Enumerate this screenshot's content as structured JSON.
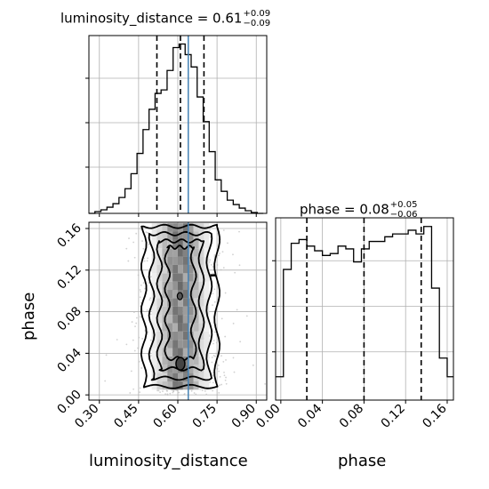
{
  "chart_data": {
    "type": "corner",
    "parameters": [
      "luminosity_distance",
      "phase"
    ],
    "truth": {
      "luminosity_distance": 0.64
    },
    "colors": {
      "truth_line": "#4682b4",
      "hist": "#000000",
      "grid": "#b0b0b0",
      "scatter": "#bdbdbd"
    },
    "panels": [
      {
        "id": "hist_luminosity_distance",
        "type": "histogram",
        "title": {
          "text": "luminosity_distance = 0.61",
          "upper": "+0.09",
          "lower": "−0.09"
        },
        "xlim": [
          0.26,
          0.94
        ],
        "quantiles": [
          0.52,
          0.61,
          0.7
        ],
        "bin_edges": [
          0.26,
          0.283,
          0.306,
          0.329,
          0.352,
          0.375,
          0.398,
          0.421,
          0.444,
          0.467,
          0.49,
          0.513,
          0.536,
          0.559,
          0.582,
          0.605,
          0.628,
          0.651,
          0.674,
          0.697,
          0.72,
          0.743,
          0.766,
          0.789,
          0.812,
          0.835,
          0.858,
          0.881,
          0.904,
          0.927
        ],
        "counts": [
          0,
          2,
          4,
          7,
          11,
          18,
          28,
          45,
          68,
          95,
          118,
          136,
          140,
          162,
          188,
          192,
          180,
          166,
          132,
          104,
          70,
          38,
          25,
          15,
          10,
          6,
          3,
          1,
          0
        ]
      },
      {
        "id": "hist_phase",
        "type": "histogram",
        "title": {
          "text": "phase = 0.08",
          "upper": "+0.05",
          "lower": "−0.06"
        },
        "xlim": [
          -0.005,
          0.166
        ],
        "quantiles": [
          0.025,
          0.08,
          0.135
        ],
        "bin_edges": [
          -0.005,
          0.0025,
          0.01,
          0.0175,
          0.025,
          0.0325,
          0.04,
          0.0475,
          0.055,
          0.0625,
          0.07,
          0.0775,
          0.085,
          0.0925,
          0.1,
          0.1075,
          0.115,
          0.1225,
          0.13,
          0.1375,
          0.145,
          0.1525,
          0.16,
          0.166
        ],
        "counts": [
          25,
          140,
          168,
          172,
          165,
          160,
          155,
          157,
          165,
          162,
          148,
          162,
          170,
          170,
          175,
          178,
          178,
          182,
          178,
          186,
          120,
          45,
          25
        ]
      },
      {
        "id": "scatter_phase_vs_luminosity_distance",
        "type": "density_contour",
        "xlabel": "luminosity_distance",
        "ylabel": "phase",
        "xlim": [
          0.26,
          0.94
        ],
        "ylim": [
          -0.005,
          0.166
        ],
        "xticks": [
          "0.30",
          "0.45",
          "0.60",
          "0.75",
          "0.90"
        ],
        "yticks": [
          "0.00",
          "0.04",
          "0.08",
          "0.12",
          "0.16"
        ],
        "contour_levels": [
          {
            "xmin": 0.47,
            "xmax": 0.75,
            "ymin": 0.008,
            "ymax": 0.162
          },
          {
            "xmin": 0.5,
            "xmax": 0.72,
            "ymin": 0.016,
            "ymax": 0.155
          },
          {
            "xmin": 0.53,
            "xmax": 0.69,
            "ymin": 0.025,
            "ymax": 0.148
          },
          {
            "xmin": 0.56,
            "xmax": 0.66,
            "ymin": 0.035,
            "ymax": 0.142
          }
        ]
      }
    ],
    "xlabels": [
      "luminosity_distance",
      "phase"
    ],
    "phase_xticks": [
      "0.00",
      "0.04",
      "0.08",
      "0.12",
      "0.16"
    ],
    "ld_xticks": [
      "0.30",
      "0.45",
      "0.60",
      "0.75",
      "0.90"
    ]
  }
}
